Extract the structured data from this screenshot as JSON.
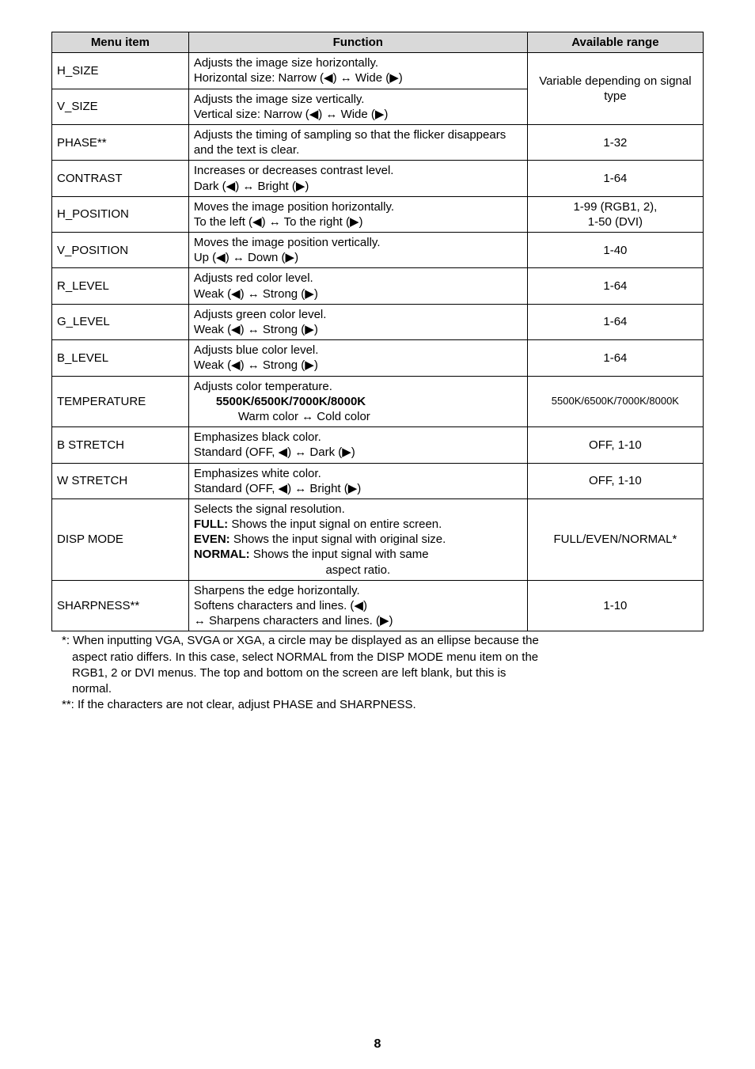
{
  "headers": {
    "menu": "Menu item",
    "function": "Function",
    "available": "Available range"
  },
  "rows": [
    {
      "key": "h_size",
      "menu": "H_SIZE",
      "func": [
        {
          "t": "Adjusts the image size horizontally."
        },
        {
          "t": "Horizontal size: Narrow (◀) ↔ Wide (▶)"
        }
      ],
      "range": "Variable depending on signal type",
      "range_rowspan": 2
    },
    {
      "key": "v_size",
      "menu": "V_SIZE",
      "func": [
        {
          "t": "Adjusts the image size vertically."
        },
        {
          "t": "Vertical size: Narrow (◀) ↔ Wide (▶)"
        }
      ]
    },
    {
      "key": "phase",
      "menu": "PHASE**",
      "func": [
        {
          "t": "Adjusts the timing of sampling so that the flicker disappears and the text is clear."
        }
      ],
      "range": "1-32"
    },
    {
      "key": "contrast",
      "menu": "CONTRAST",
      "func": [
        {
          "t": "Increases or decreases contrast level."
        },
        {
          "t": "Dark (◀) ↔ Bright (▶)"
        }
      ],
      "range": "1-64"
    },
    {
      "key": "h_position",
      "menu": "H_POSITION",
      "func": [
        {
          "t": "Moves the image position horizontally."
        },
        {
          "t": "To the left (◀) ↔ To the right (▶)"
        }
      ],
      "range": "1-99 (RGB1, 2),\n1-50 (DVI)",
      "range_multiline": true
    },
    {
      "key": "v_position",
      "menu": "V_POSITION",
      "func": [
        {
          "t": "Moves the image position vertically."
        },
        {
          "t": "Up (◀) ↔ Down (▶)"
        }
      ],
      "range": "1-40"
    },
    {
      "key": "r_level",
      "menu": "R_LEVEL",
      "func": [
        {
          "t": "Adjusts red color level."
        },
        {
          "t": "Weak (◀) ↔ Strong (▶)"
        }
      ],
      "range": "1-64"
    },
    {
      "key": "g_level",
      "menu": "G_LEVEL",
      "func": [
        {
          "t": "Adjusts green color level."
        },
        {
          "t": "Weak (◀) ↔ Strong (▶)"
        }
      ],
      "range": "1-64"
    },
    {
      "key": "b_level",
      "menu": "B_LEVEL",
      "func": [
        {
          "t": "Adjusts blue color level."
        },
        {
          "t": "Weak (◀) ↔ Strong (▶)"
        }
      ],
      "range": "1-64"
    },
    {
      "key": "temperature",
      "menu": "TEMPERATURE",
      "func": [
        {
          "t": "Adjusts color temperature."
        },
        {
          "t": "5500K/6500K/7000K/8000K",
          "cls": "indent1",
          "bold": true
        },
        {
          "t": "Warm color ↔ Cold color",
          "cls": "indent2"
        }
      ],
      "range": "5500K/6500K/7000K/8000K",
      "range_small": true
    },
    {
      "key": "b_stretch",
      "menu": "B STRETCH",
      "func": [
        {
          "t": "Emphasizes black color."
        },
        {
          "t": "Standard (OFF, ◀) ↔ Dark (▶)"
        }
      ],
      "range": "OFF, 1-10"
    },
    {
      "key": "w_stretch",
      "menu": "W STRETCH",
      "func": [
        {
          "t": "Emphasizes white color."
        },
        {
          "t": "Standard (OFF, ◀) ↔ Bright (▶)"
        }
      ],
      "range": "OFF, 1-10"
    },
    {
      "key": "disp_mode",
      "menu": "DISP MODE",
      "func": [
        {
          "t": "Selects the signal resolution."
        },
        {
          "bold_prefix": "FULL:",
          "t": " Shows the input signal on entire screen."
        },
        {
          "bold_prefix": "EVEN:",
          "t": " Shows the input signal with original size."
        },
        {
          "bold_prefix": "NORMAL:",
          "t": " Shows the input signal with same"
        },
        {
          "t": "aspect ratio.",
          "center": true
        }
      ],
      "range": "FULL/EVEN/NORMAL*"
    },
    {
      "key": "sharpness",
      "menu": "SHARPNESS**",
      "func": [
        {
          "t": "Sharpens the edge horizontally."
        },
        {
          "t": "Softens characters and lines. (◀)"
        },
        {
          "t": "↔ Sharpens characters and lines. (▶)"
        }
      ],
      "range": "1-10"
    }
  ],
  "footnotes": {
    "f1a": "*: When inputting VGA, SVGA or XGA, a circle may be displayed as an ellipse because the",
    "f1b": "aspect ratio differs. In this case, select NORMAL from the DISP MODE menu item on the",
    "f1c": "RGB1, 2 or DVI menus. The top and bottom on the screen are left blank, but this is",
    "f1d": "normal.",
    "f2": "**: If the characters are not clear, adjust PHASE and SHARPNESS."
  },
  "page_number": "8"
}
